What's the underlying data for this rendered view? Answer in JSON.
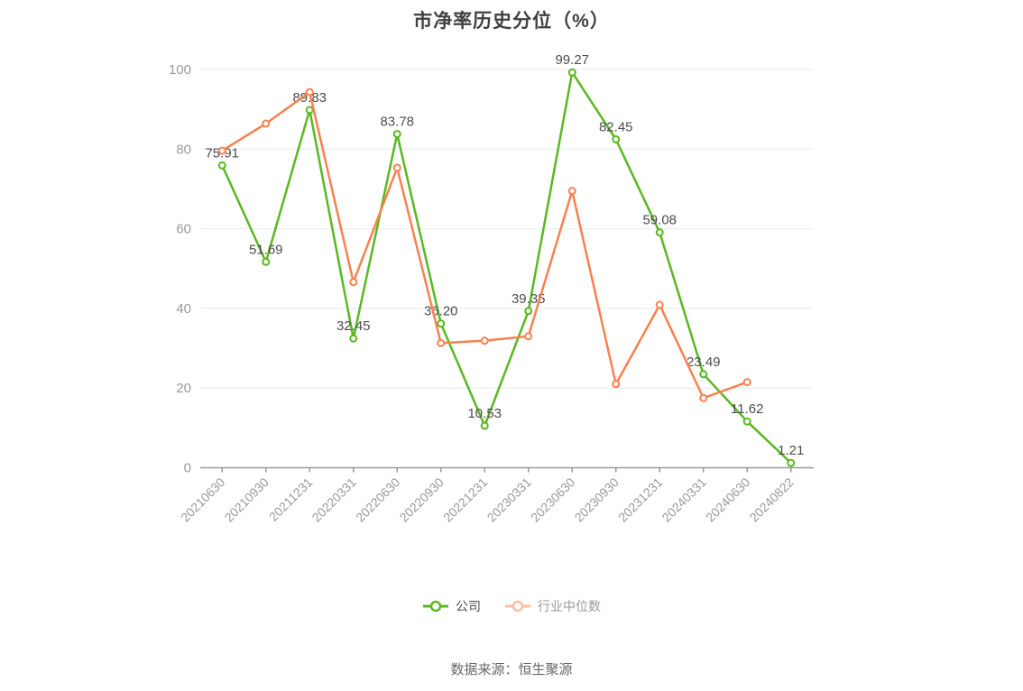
{
  "page": {
    "background": "#ffffff"
  },
  "source": {
    "text": "数据来源：恒生聚源"
  },
  "chart_data": {
    "type": "line",
    "title": "市净率历史分位（%）",
    "categories": [
      "20210630",
      "20210930",
      "20211231",
      "20220331",
      "20220630",
      "20220930",
      "20221231",
      "20230331",
      "20230630",
      "20230930",
      "20231231",
      "20240331",
      "20240630",
      "20240822"
    ],
    "series": [
      {
        "name": "公司",
        "color": "#5ab821",
        "label_color": "#4d4d4d",
        "show_labels": true,
        "values": [
          75.91,
          51.69,
          89.83,
          32.45,
          83.78,
          36.2,
          10.53,
          39.35,
          99.27,
          82.45,
          59.08,
          23.49,
          11.62,
          1.21
        ]
      },
      {
        "name": "行业中位数",
        "color": "#fa8050",
        "label_color": "#4d4d4d",
        "show_labels": false,
        "values": [
          79.6,
          86.4,
          94.3,
          46.6,
          75.3,
          31.3,
          31.9,
          33.0,
          69.5,
          21.0,
          40.9,
          17.5,
          21.5,
          null
        ]
      }
    ],
    "ylim": [
      0,
      100
    ],
    "yticks": [
      0,
      20,
      40,
      60,
      80,
      100
    ],
    "grid": true,
    "x_label_rotation": 45,
    "legend_position": "bottom",
    "legend": [
      {
        "label": "公司",
        "marker_color": "#5ab821",
        "text_color": "#4d4d4d"
      },
      {
        "label": "行业中位数",
        "marker_color": "#f9c0a6",
        "text_color": "#999999"
      }
    ],
    "axis_colors": {
      "axis_line": "#999999",
      "grid_line": "#e4ebf5",
      "tick_label": "#999999"
    }
  }
}
